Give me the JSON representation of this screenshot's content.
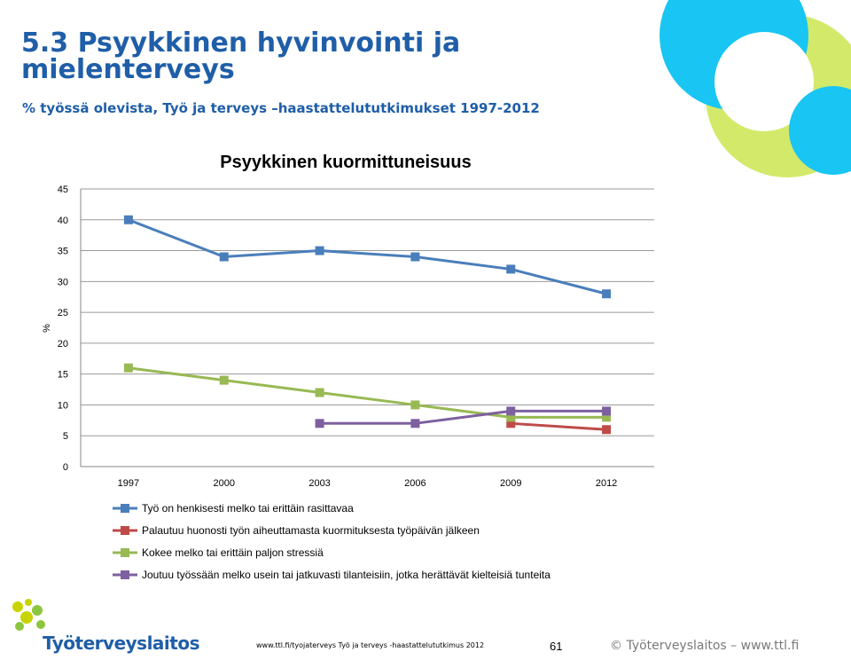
{
  "slide": {
    "title": "5.3 Psyykkinen hyvinvointi ja mielenterveys",
    "subtitle": "% työssä olevista, Työ ja terveys –haastattelututkimukset 1997-2012"
  },
  "footer": {
    "logo_text": "Työterveyslaitos",
    "source": "www.ttl.fi/tyojaterveys  Työ ja terveys -haastattelututkimus 2012",
    "page_number": "61",
    "copyright": "© Työterveyslaitos  –  www.ttl.fi"
  },
  "colors": {
    "brand_blue": "#1f5ea8",
    "deco_cyan": "#19c5f3",
    "deco_lime": "#d3e96a",
    "logo_yellow": "#c8d400",
    "logo_green": "#8cc63f"
  },
  "chart_data": {
    "type": "line",
    "title": "Psyykkinen kuormittuneisuus",
    "xlabel": "",
    "ylabel": "%",
    "categories": [
      "1997",
      "2000",
      "2003",
      "2006",
      "2009",
      "2012"
    ],
    "ylim": [
      0,
      45
    ],
    "yticks": [
      0,
      5,
      10,
      15,
      20,
      25,
      30,
      35,
      40,
      45
    ],
    "grid": true,
    "legend_position": "bottom",
    "series": [
      {
        "name": "Työ on henkisesti melko tai erittäin rasittavaa",
        "color": "#4a7ebb",
        "values": [
          40,
          34,
          35,
          34,
          32,
          28
        ]
      },
      {
        "name": "Palautuu huonosti työn aiheuttamasta kuormituksesta työpäivän jälkeen",
        "color": "#be4b48",
        "values": [
          null,
          null,
          null,
          null,
          7,
          6
        ]
      },
      {
        "name": "Kokee melko tai erittäin paljon stressiä",
        "color": "#98b954",
        "values": [
          16,
          14,
          12,
          10,
          8,
          8
        ]
      },
      {
        "name": "Joutuu työssään melko usein tai jatkuvasti tilanteisiin, jotka herättävät kielteisiä tunteita",
        "color": "#7d60a0",
        "values": [
          null,
          null,
          7,
          7,
          9,
          9
        ]
      }
    ]
  }
}
